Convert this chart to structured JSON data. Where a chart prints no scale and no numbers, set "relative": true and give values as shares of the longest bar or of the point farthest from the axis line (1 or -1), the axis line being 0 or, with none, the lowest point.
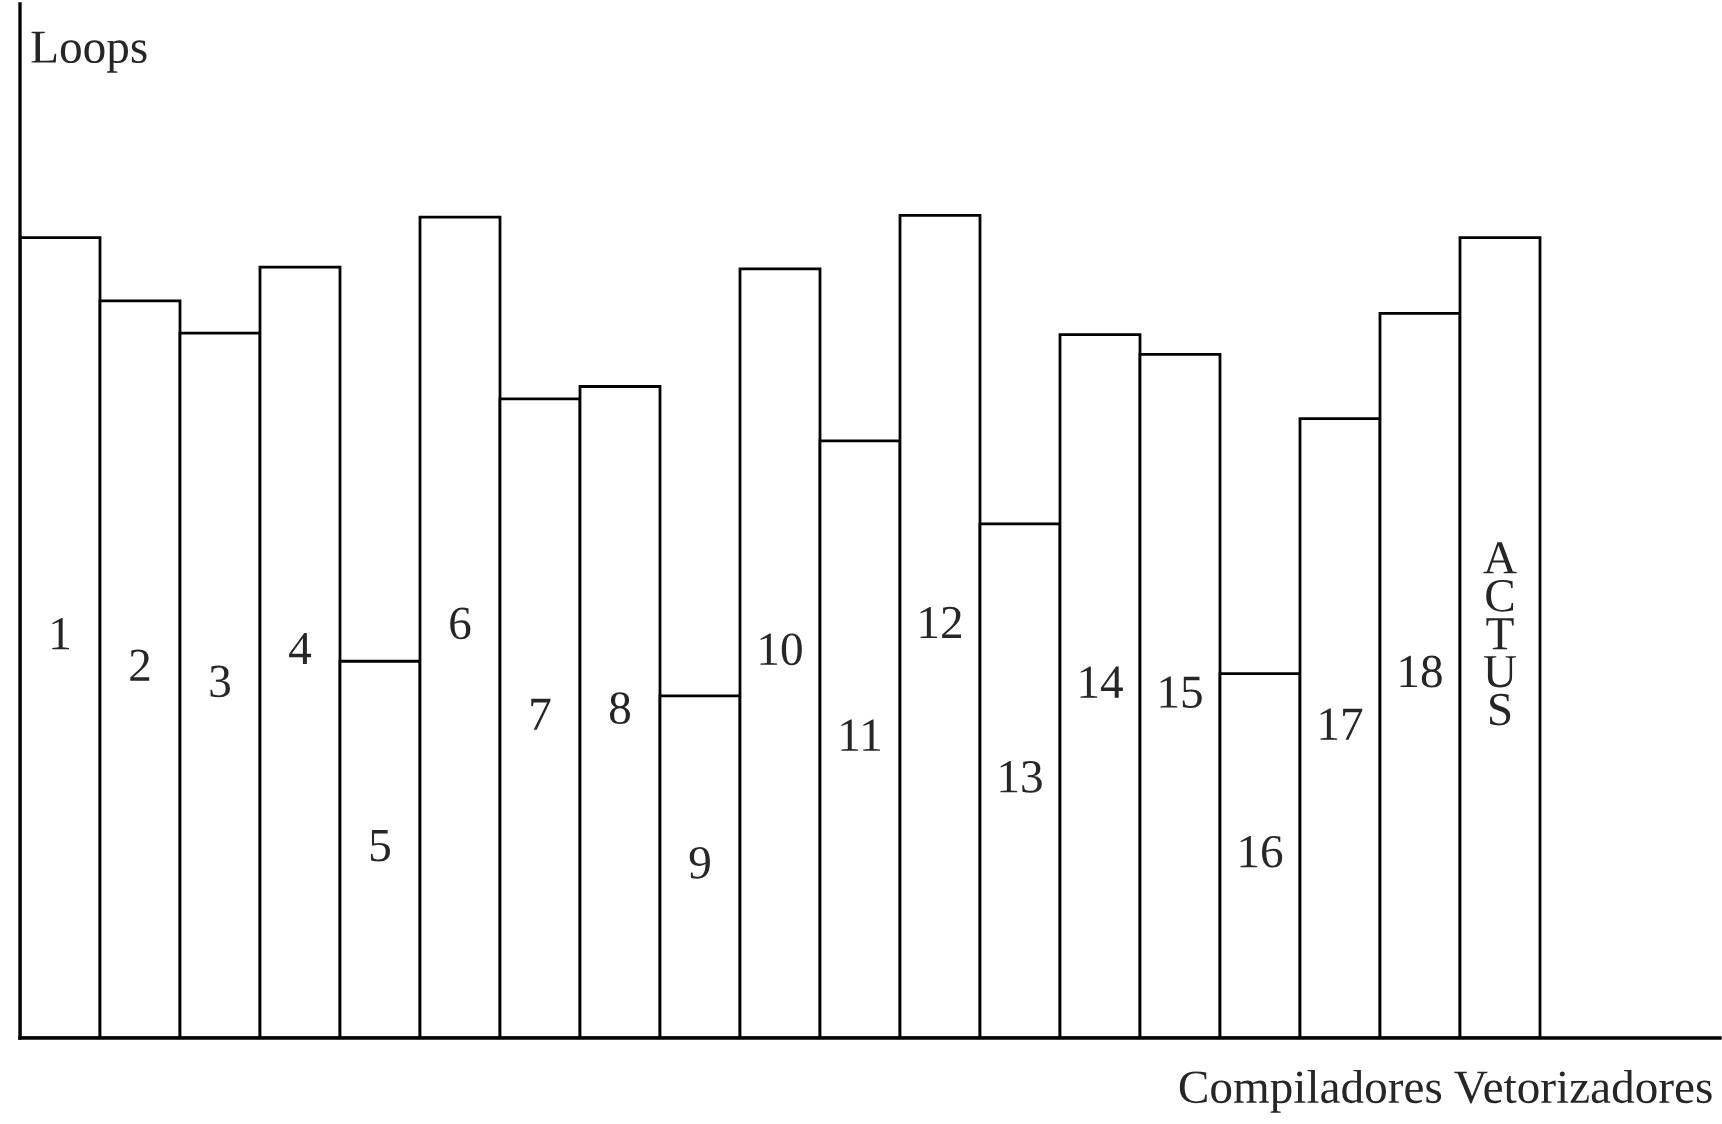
{
  "chart_data": {
    "type": "bar",
    "relative": true,
    "ylabel": "Loops",
    "xlabel": "Compiladores Vetorizadores",
    "categories": [
      "1",
      "2",
      "3",
      "4",
      "5",
      "6",
      "7",
      "8",
      "9",
      "10",
      "11",
      "12",
      "13",
      "14",
      "15",
      "16",
      "17",
      "18",
      "ACTUS"
    ],
    "values": [
      0.973,
      0.896,
      0.857,
      0.937,
      0.458,
      0.998,
      0.777,
      0.792,
      0.416,
      0.935,
      0.726,
      1,
      0.625,
      0.855,
      0.831,
      0.443,
      0.753,
      0.881,
      0.973
    ],
    "color": "#ffffff"
  }
}
